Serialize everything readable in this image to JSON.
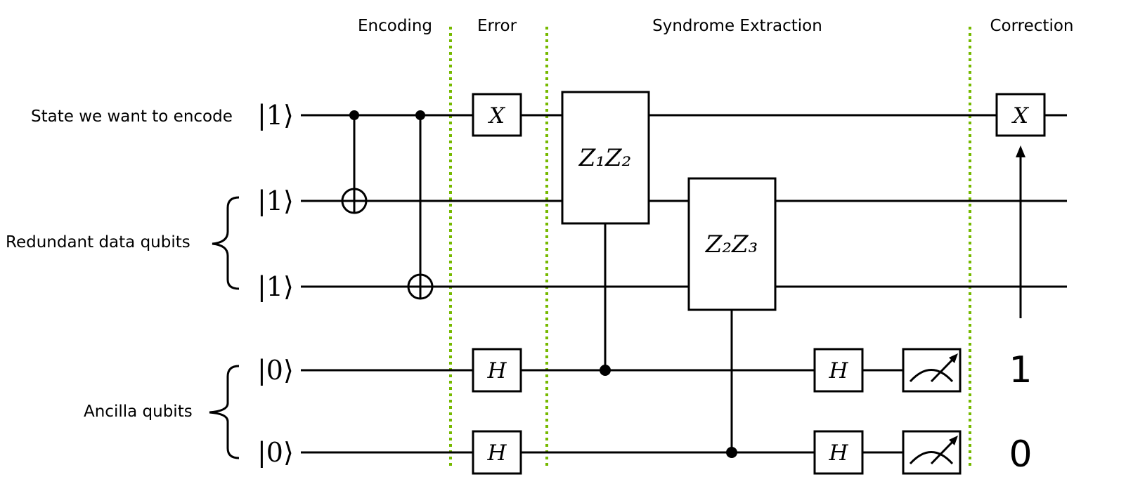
{
  "sections": {
    "encoding": "Encoding",
    "error": "Error",
    "syndrome": "Syndrome Extraction",
    "correction": "Correction"
  },
  "labels": {
    "state": "State we want to encode",
    "redundant": "Redundant data qubits",
    "ancilla": "Ancilla qubits"
  },
  "kets": [
    "|1⟩",
    "|1⟩",
    "|1⟩",
    "|0⟩",
    "|0⟩"
  ],
  "gates": {
    "error_x": "X",
    "h1": "H",
    "h2": "H",
    "z1z2": "Z₁Z₂",
    "z2z3": "Z₂Z₃",
    "h3": "H",
    "h4": "H",
    "correction_x": "X"
  },
  "measurements": {
    "ancilla1": "1",
    "ancilla2": "0"
  },
  "colors": {
    "divider": "#76b900",
    "line": "#000000"
  }
}
